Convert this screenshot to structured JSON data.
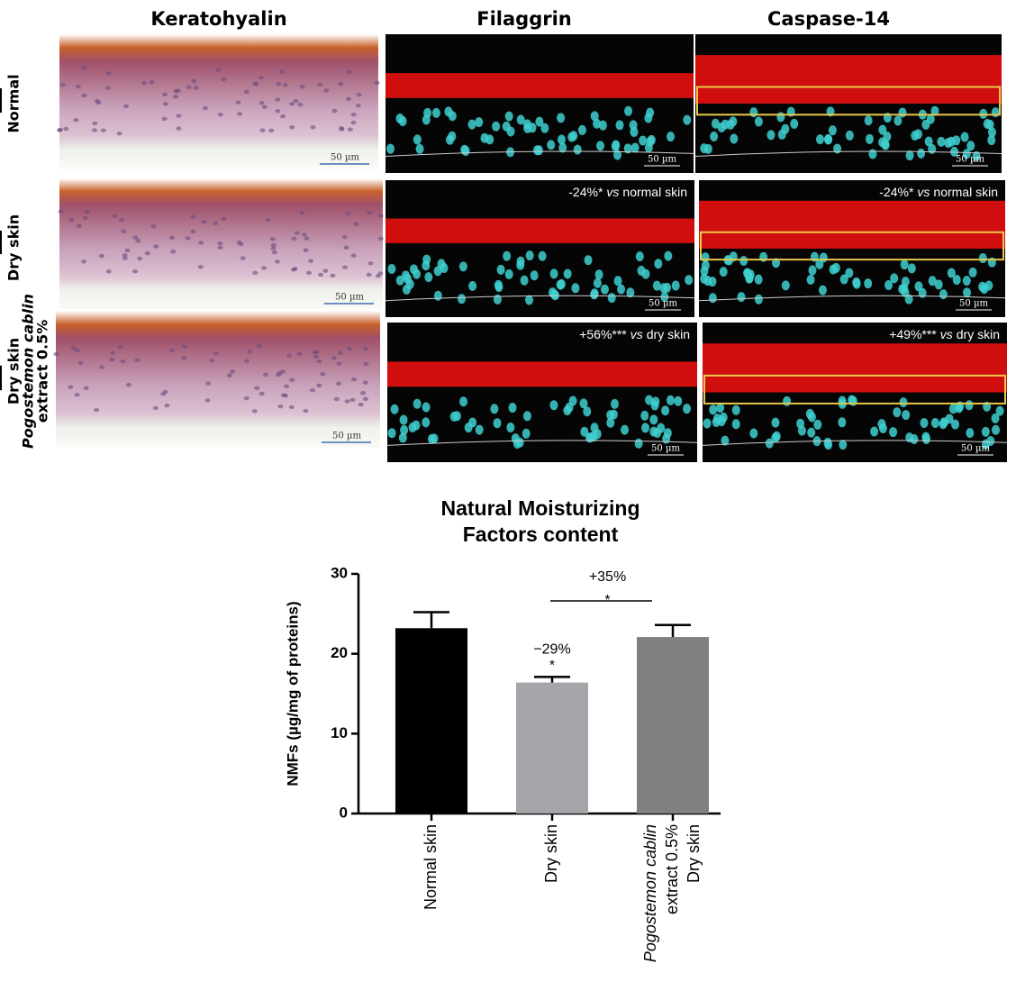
{
  "figure": {
    "columns": [
      "Keratohyalin",
      "Filaggrin",
      "Caspase-14"
    ],
    "rows": [
      [
        "Normal"
      ],
      [
        "Dry skin"
      ],
      [
        "Dry skin",
        "Pogostemon cablin",
        "extract  0.5%"
      ]
    ],
    "scale_bar": "50 µm",
    "annotations": [
      {
        "pre": "-24%*",
        "em": "vs",
        "post": "normal skin"
      },
      {
        "pre": "-24%*",
        "em": "vs",
        "post": "normal skin"
      },
      {
        "pre": "+56%***",
        "em": "vs",
        "post": "dry skin"
      },
      {
        "pre": "+49%***",
        "em": "vs",
        "post": "dry skin"
      }
    ]
  },
  "chart_data": {
    "type": "bar",
    "title": [
      "Natural Moisturizing",
      "Factors content"
    ],
    "y_label": "NMFs (µg/mg of proteins)",
    "categories": [
      [
        "Normal skin"
      ],
      [
        "Dry skin"
      ],
      [
        "Pogostemon cablin",
        "extract 0.5%",
        "Dry skin"
      ]
    ],
    "values": [
      23.2,
      16.4,
      22.1
    ],
    "errors": [
      2.0,
      0.7,
      1.5
    ],
    "colors": [
      "#000000",
      "#a6a6aa",
      "#808080"
    ],
    "ylim": [
      0,
      30
    ],
    "yticks": [
      0,
      10,
      20,
      30
    ],
    "annotations": [
      {
        "lines": [
          "−29%",
          "*"
        ],
        "category": 1
      },
      {
        "lines": [
          "+35%",
          "*"
        ],
        "from": 1,
        "to": 2
      }
    ]
  }
}
